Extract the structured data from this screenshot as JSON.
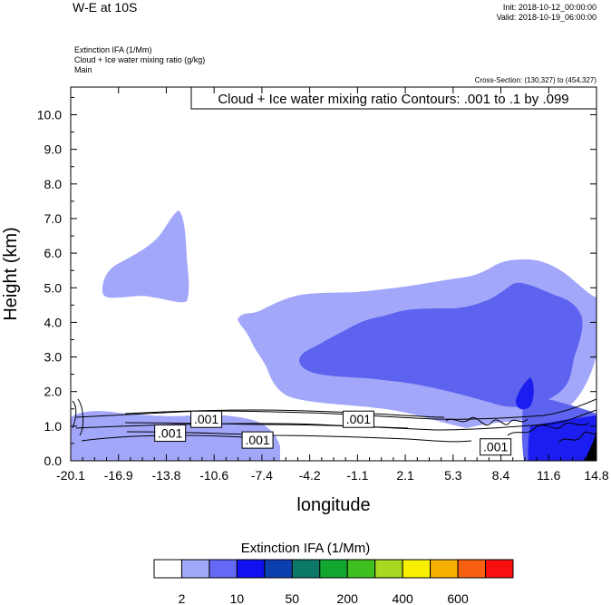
{
  "header": {
    "title": "W-E at 10S",
    "init": "Init: 2018-10-12_00:00:00",
    "valid": "Valid: 2018-10-19_06:00:00"
  },
  "subtitles": {
    "line1": "Extinction IFA   (1/Mm)",
    "line2": "Cloud + Ice water mixing ratio   (g/kg)",
    "line3": "Main"
  },
  "cross_section": "Cross-Section: (130,327) to (454,327)",
  "chart_data": {
    "type": "contour",
    "title": "Cloud + Ice water mixing ratio Contours: .001 to .1 by .099",
    "xlabel": "longitude",
    "ylabel": "Height (km)",
    "xlim": [
      -20.1,
      14.8
    ],
    "ylim": [
      0.0,
      10.8
    ],
    "x_ticks": [
      "-20.1",
      "-16.9",
      "-13.8",
      "-10.6",
      "-7.4",
      "-4.2",
      "-1.1",
      "2.1",
      "5.3",
      "8.4",
      "11.6",
      "14.8"
    ],
    "y_ticks": [
      "0.0",
      "1.0",
      "2.0",
      "3.0",
      "4.0",
      "5.0",
      "6.0",
      "7.0",
      "8.0",
      "9.0",
      "10.0"
    ],
    "contour_labels": [
      {
        "text": ".001",
        "lon": -13.5,
        "h": 0.8
      },
      {
        "text": ".001",
        "lon": -11.1,
        "h": 1.2
      },
      {
        "text": ".001",
        "lon": -7.7,
        "h": 0.6
      },
      {
        "text": ".001",
        "lon": -1.0,
        "h": 1.2
      },
      {
        "text": ".001",
        "lon": 8.1,
        "h": 0.4
      }
    ],
    "colorbar": {
      "title": "Extinction IFA  (1/Mm)",
      "colors": [
        "#ffffff",
        "#a0a8f8",
        "#6468f4",
        "#1010f0",
        "#0c40b0",
        "#0c7868",
        "#10a830",
        "#40c020",
        "#a8d820",
        "#f8f000",
        "#f8b000",
        "#f86010",
        "#f81010"
      ],
      "labels": [
        "2",
        "10",
        "50",
        "200",
        "400",
        "600"
      ]
    },
    "colors": {
      "level1": "#a3a7fa",
      "level2": "#5d63ee",
      "level3": "#1c1df0",
      "dark": "#000000",
      "contour": "#000000"
    }
  }
}
